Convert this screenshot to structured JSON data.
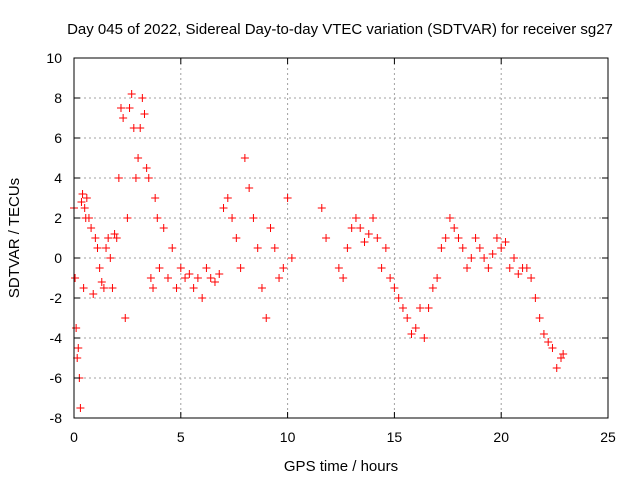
{
  "chart_data": {
    "type": "scatter",
    "marker": "plus",
    "title": "Day 045 of 2022, Sidereal Day-to-day VTEC variation (SDTVAR) for receiver sg27",
    "xlabel": "GPS time / hours",
    "ylabel": "SDTVAR / TECUs",
    "xlim": [
      0,
      25
    ],
    "ylim": [
      -8,
      10
    ],
    "xticks": [
      0,
      5,
      10,
      15,
      20,
      25
    ],
    "yticks": [
      -8,
      -6,
      -4,
      -2,
      0,
      2,
      4,
      6,
      8,
      10
    ],
    "grid": true,
    "color": "#ff0000",
    "series": [
      {
        "name": "SDTVAR",
        "x": [
          0.0,
          0.05,
          0.1,
          0.15,
          0.2,
          0.25,
          0.3,
          0.35,
          0.4,
          0.45,
          0.5,
          0.55,
          0.6,
          0.7,
          0.8,
          0.9,
          1.0,
          1.1,
          1.2,
          1.3,
          1.4,
          1.5,
          1.6,
          1.7,
          1.8,
          1.9,
          2.0,
          2.1,
          2.2,
          2.3,
          2.4,
          2.5,
          2.6,
          2.7,
          2.8,
          2.9,
          3.0,
          3.1,
          3.2,
          3.3,
          3.4,
          3.5,
          3.6,
          3.7,
          3.8,
          3.9,
          4.0,
          4.2,
          4.4,
          4.6,
          4.8,
          5.0,
          5.2,
          5.4,
          5.6,
          5.8,
          6.0,
          6.2,
          6.4,
          6.6,
          6.8,
          7.0,
          7.2,
          7.4,
          7.6,
          7.8,
          8.0,
          8.2,
          8.4,
          8.6,
          8.8,
          9.0,
          9.2,
          9.4,
          9.6,
          9.8,
          10.0,
          10.2,
          11.6,
          11.8,
          12.4,
          12.6,
          12.8,
          13.0,
          13.2,
          13.4,
          13.6,
          13.8,
          14.0,
          14.2,
          14.4,
          14.6,
          14.8,
          15.0,
          15.2,
          15.4,
          15.6,
          15.8,
          16.0,
          16.2,
          16.4,
          16.6,
          16.8,
          17.0,
          17.2,
          17.4,
          17.6,
          17.8,
          18.0,
          18.2,
          18.4,
          18.6,
          18.8,
          19.0,
          19.2,
          19.4,
          19.6,
          19.8,
          20.0,
          20.2,
          20.4,
          20.6,
          20.8,
          21.0,
          21.2,
          21.4,
          21.6,
          21.8,
          22.0,
          22.2,
          22.4,
          22.6,
          22.8,
          22.9
        ],
        "y": [
          2.5,
          -1.0,
          -3.5,
          -5.0,
          -4.5,
          -6.0,
          -7.5,
          2.8,
          3.2,
          -1.5,
          2.5,
          2.0,
          3.0,
          2.0,
          1.5,
          -1.8,
          1.0,
          0.5,
          -0.5,
          -1.2,
          -1.5,
          0.5,
          1.0,
          0.0,
          -1.5,
          1.2,
          1.0,
          4.0,
          7.5,
          7.0,
          -3.0,
          2.0,
          7.5,
          8.2,
          6.5,
          4.0,
          5.0,
          6.5,
          8.0,
          7.2,
          4.5,
          4.0,
          -1.0,
          -1.5,
          3.0,
          2.0,
          -0.5,
          1.5,
          -1.0,
          0.5,
          -1.5,
          -0.5,
          -1.0,
          -0.8,
          -1.5,
          -1.0,
          -2.0,
          -0.5,
          -1.0,
          -1.2,
          -0.8,
          2.5,
          3.0,
          2.0,
          1.0,
          -0.5,
          5.0,
          3.5,
          2.0,
          0.5,
          -1.5,
          -3.0,
          1.5,
          0.5,
          -1.0,
          -0.5,
          3.0,
          0.0,
          2.5,
          1.0,
          -0.5,
          -1.0,
          0.5,
          1.5,
          2.0,
          1.5,
          0.8,
          1.2,
          2.0,
          1.0,
          -0.5,
          0.5,
          -1.0,
          -1.5,
          -2.0,
          -2.5,
          -3.0,
          -3.8,
          -3.5,
          -2.5,
          -4.0,
          -2.5,
          -1.5,
          -1.0,
          0.5,
          1.0,
          2.0,
          1.5,
          1.0,
          0.5,
          -0.5,
          0.0,
          1.0,
          0.5,
          0.0,
          -0.5,
          0.2,
          1.0,
          0.5,
          0.8,
          -0.5,
          0.0,
          -0.8,
          -0.5,
          -0.5,
          -1.0,
          -2.0,
          -3.0,
          -3.8,
          -4.2,
          -4.5,
          -5.5,
          -5.0,
          -4.8
        ]
      }
    ]
  }
}
